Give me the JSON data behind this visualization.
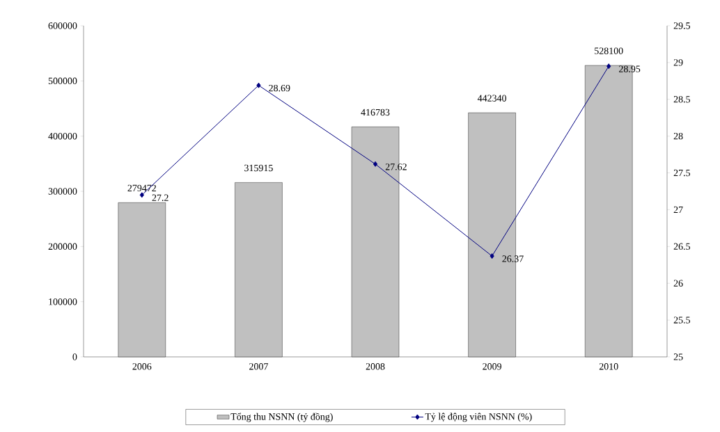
{
  "chart_data": {
    "type": "bar",
    "categories": [
      "2006",
      "2007",
      "2008",
      "2009",
      "2010"
    ],
    "series": [
      {
        "name": "Tổng thu NSNN (tỷ đồng)",
        "color": "#c0c0c0",
        "values": [
          279472,
          315915,
          416783,
          442340,
          528100
        ]
      },
      {
        "name": "Tỷ lệ động viên NSNN (%)",
        "type": "line",
        "axis": "y2",
        "color": "#000080",
        "values": [
          27.2,
          28.69,
          27.62,
          26.37,
          28.95
        ]
      }
    ],
    "ylim": [
      0,
      600000
    ],
    "yticks": [
      0,
      100000,
      200000,
      300000,
      400000,
      500000,
      600000
    ],
    "y2lim": [
      25,
      29.5
    ],
    "y2ticks": [
      25,
      25.5,
      26,
      26.5,
      27,
      27.5,
      28,
      28.5,
      29,
      29.5
    ],
    "data_labels": true,
    "legend": "bottom",
    "marker": "diamond",
    "grid": false
  }
}
